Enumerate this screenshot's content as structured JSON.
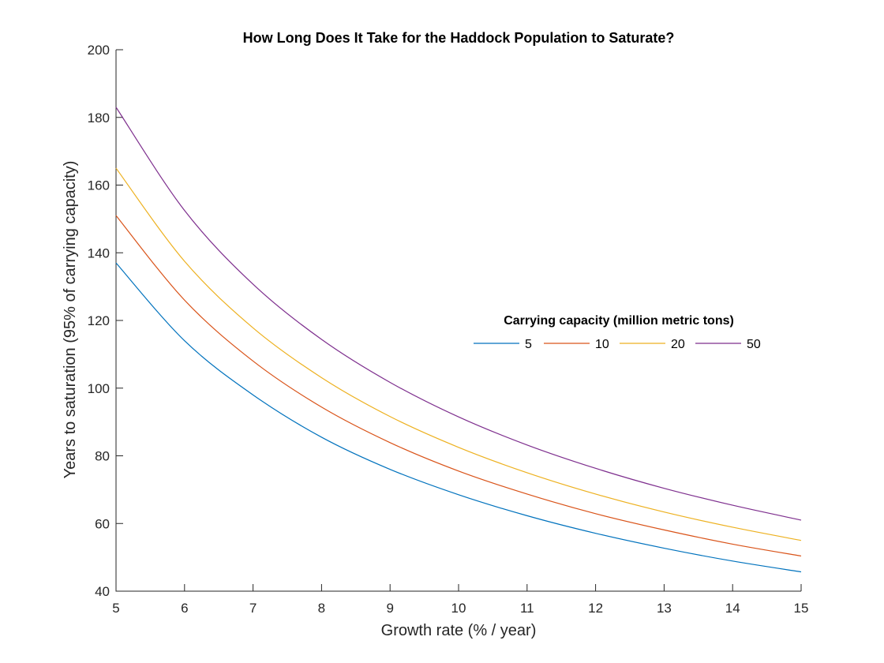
{
  "chart_data": {
    "type": "line",
    "title": "How Long Does It Take for the Haddock Population to Saturate?",
    "xlabel": "Growth rate (% / year)",
    "ylabel": "Years to saturation (95% of carrying capacity)",
    "xlim": [
      5,
      15
    ],
    "ylim": [
      40,
      200
    ],
    "xticks": [
      5,
      6,
      7,
      8,
      9,
      10,
      11,
      12,
      13,
      14,
      15
    ],
    "yticks": [
      40,
      60,
      80,
      100,
      120,
      140,
      160,
      180,
      200
    ],
    "grid": false,
    "legend": {
      "title": "Carrying capacity (million metric tons)",
      "placement": "center-right",
      "orientation": "horizontal"
    },
    "x": [
      5,
      6,
      7,
      8,
      9,
      10,
      11,
      12,
      13,
      14,
      15
    ],
    "series": [
      {
        "name": "5",
        "color": "#0072BD",
        "values": [
          137,
          114,
          98,
          85.5,
          76,
          68.5,
          62.3,
          57.1,
          52.7,
          48.9,
          45.7
        ]
      },
      {
        "name": "10",
        "color": "#D95319",
        "values": [
          151,
          126,
          108,
          94.4,
          83.9,
          75.5,
          68.7,
          62.9,
          58.1,
          53.9,
          50.4
        ]
      },
      {
        "name": "20",
        "color": "#EDB120",
        "values": [
          165,
          137.5,
          117.8,
          103.1,
          91.6,
          82.5,
          75,
          68.7,
          63.4,
          58.9,
          55
        ]
      },
      {
        "name": "50",
        "color": "#7E2F8E",
        "values": [
          183,
          152.5,
          130.7,
          114.4,
          101.7,
          91.5,
          83.2,
          76.3,
          70.4,
          65.4,
          61
        ]
      }
    ]
  }
}
